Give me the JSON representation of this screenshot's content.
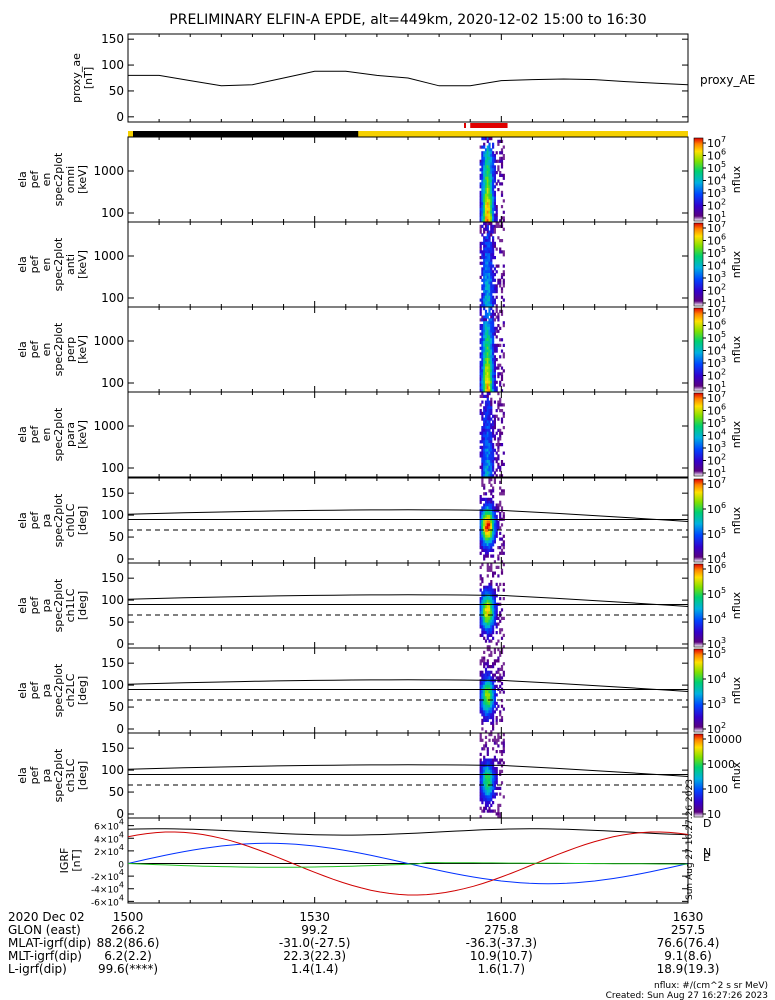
{
  "title": "PRELIMINARY ELFIN-A EPDE, alt=449km, 2020-12-02 15:00 to 16:30",
  "chart_data": [
    {
      "type": "line",
      "name": "proxy_ae",
      "ylabel": [
        "proxy_ae",
        "[nT]"
      ],
      "legend": "proxy_AE",
      "yticks": [
        "0",
        "50",
        "100",
        "150"
      ],
      "ylim": [
        -10,
        160
      ],
      "x_minutes": [
        0,
        5,
        10,
        15,
        20,
        25,
        30,
        35,
        40,
        45,
        50,
        55,
        60,
        65,
        70,
        75,
        80,
        85,
        90
      ],
      "values": [
        80,
        80,
        70,
        60,
        62,
        75,
        88,
        88,
        80,
        75,
        60,
        60,
        70,
        72,
        73,
        72,
        68,
        65,
        62
      ]
    },
    {
      "type": "heatmap",
      "panels": [
        {
          "ylabel": [
            "ela",
            "pef",
            "en",
            "spec2plot",
            "omni",
            "[keV]"
          ],
          "yticks": [
            "100",
            "1000"
          ],
          "cbar_ticks": [
            "10^1",
            "10^2",
            "10^3",
            "10^4",
            "10^5",
            "10^6",
            "10^7"
          ],
          "cbar_label": "nflux"
        },
        {
          "ylabel": [
            "ela",
            "pef",
            "en",
            "spec2plot",
            "anti",
            "[keV]"
          ],
          "yticks": [
            "100",
            "1000"
          ],
          "cbar_ticks": [
            "10^1",
            "10^2",
            "10^3",
            "10^4",
            "10^5",
            "10^6",
            "10^7"
          ],
          "cbar_label": "nflux"
        },
        {
          "ylabel": [
            "ela",
            "pef",
            "en",
            "spec2plot",
            "perp",
            "[keV]"
          ],
          "yticks": [
            "100",
            "1000"
          ],
          "cbar_ticks": [
            "10^1",
            "10^2",
            "10^3",
            "10^4",
            "10^5",
            "10^6",
            "10^7"
          ],
          "cbar_label": "nflux"
        },
        {
          "ylabel": [
            "ela",
            "pef",
            "en",
            "spec2plot",
            "para",
            "[keV]"
          ],
          "yticks": [
            "100",
            "1000"
          ],
          "cbar_ticks": [
            "10^1",
            "10^2",
            "10^3",
            "10^4",
            "10^5",
            "10^6",
            "10^7"
          ],
          "cbar_label": "nflux"
        },
        {
          "ylabel": [
            "ela",
            "pef",
            "pa",
            "spec2plot",
            "ch0LC",
            "[deg]"
          ],
          "yticks": [
            "0",
            "50",
            "100",
            "150"
          ],
          "cbar_ticks": [
            "10^4",
            "10^5",
            "10^6",
            "10^7"
          ],
          "cbar_label": "nflux"
        },
        {
          "ylabel": [
            "ela",
            "pef",
            "pa",
            "spec2plot",
            "ch1LC",
            "[deg]"
          ],
          "yticks": [
            "0",
            "50",
            "100",
            "150"
          ],
          "cbar_ticks": [
            "10^3",
            "10^4",
            "10^5",
            "10^6"
          ],
          "cbar_label": "nflux"
        },
        {
          "ylabel": [
            "ela",
            "pef",
            "pa",
            "spec2plot",
            "ch2LC",
            "[deg]"
          ],
          "yticks": [
            "0",
            "50",
            "100",
            "150"
          ],
          "cbar_ticks": [
            "10^2",
            "10^3",
            "10^4",
            "10^5"
          ],
          "cbar_label": "nflux"
        },
        {
          "ylabel": [
            "ela",
            "pef",
            "pa",
            "spec2plot",
            "ch3LC",
            "[deg]"
          ],
          "yticks": [
            "0",
            "50",
            "100",
            "150"
          ],
          "cbar_ticks": [
            "10",
            "100",
            "1000",
            "10000"
          ],
          "cbar_label": "nflux"
        }
      ]
    },
    {
      "type": "line",
      "name": "IGRF",
      "ylabel": [
        "IGRF",
        "[nT]"
      ],
      "yticks": [
        "-6×10^4",
        "-4×10^4",
        "-2×10^4",
        "0",
        "2×10^4",
        "4×10^4",
        "6×10^4"
      ],
      "legend": [
        "D",
        "E",
        "N"
      ],
      "side_note": "Sun Aug 27 16:27:26 2023"
    }
  ],
  "footer": {
    "rows": [
      {
        "label": "2020 Dec 02",
        "values": [
          "1500",
          "1530",
          "1600",
          "1630"
        ]
      },
      {
        "label": "GLON (east)",
        "values": [
          "266.2",
          "99.2",
          "275.8",
          "257.5"
        ]
      },
      {
        "label": "MLAT-igrf(dip)",
        "values": [
          "88.2(86.6)",
          "-31.0(-27.5)",
          "-36.3(-37.3)",
          "76.6(76.4)"
        ]
      },
      {
        "label": "MLT-igrf(dip)",
        "values": [
          "6.2(2.2)",
          "22.3(22.3)",
          "10.9(10.7)",
          "9.1(8.6)"
        ]
      },
      {
        "label": "L-igrf(dip)",
        "values": [
          "99.6(****)",
          "1.4(1.4)",
          "1.6(1.7)",
          "18.9(19.3)"
        ]
      }
    ],
    "units_note": "nflux: #/(cm^2 s sr MeV)",
    "created": "Created: Sun Aug 27 16:27:26 2023"
  }
}
